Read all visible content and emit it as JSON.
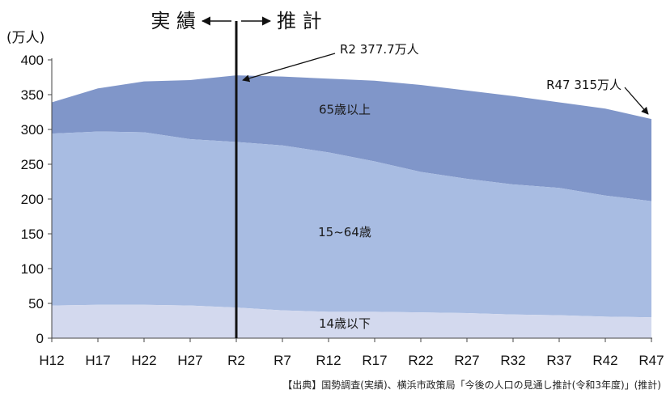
{
  "chart_data": {
    "type": "area",
    "stacked": true,
    "ylabel": "(万人)",
    "ylim": [
      0,
      400
    ],
    "yticks": [
      0,
      50,
      100,
      150,
      200,
      250,
      300,
      350,
      400
    ],
    "grid": false,
    "legend": "none",
    "categories": [
      "H12",
      "H17",
      "H22",
      "H27",
      "R2",
      "R7",
      "R12",
      "R17",
      "R22",
      "R27",
      "R32",
      "R37",
      "R42",
      "R47"
    ],
    "series": [
      {
        "name": "14歳以下",
        "color": "#d3d9ee",
        "values": [
          47,
          48,
          48,
          47,
          44,
          40,
          38,
          38,
          37,
          36,
          34,
          33,
          31,
          30
        ]
      },
      {
        "name": "15~64歳",
        "color": "#a8bce2",
        "values": [
          247,
          249,
          248,
          239,
          238,
          237,
          229,
          216,
          202,
          193,
          187,
          183,
          174,
          167
        ]
      },
      {
        "name": "65歳以上",
        "color": "#8096c9",
        "values": [
          45,
          62,
          73,
          85,
          95.7,
          99,
          106,
          116,
          125,
          127,
          127,
          123,
          125,
          118
        ]
      }
    ],
    "divider_after": "R2",
    "phase_labels": {
      "left": "実 績",
      "right": "推 計"
    },
    "annotations": [
      {
        "text": "R2 377.7万人",
        "category": "R2",
        "value": 377.7
      },
      {
        "text": "R47 315万人",
        "category": "R47",
        "value": 315
      }
    ],
    "source": "【出典】国勢調査(実績)、横浜市政策局「今後の人口の見通し推計(令和3年度)」(推計)"
  }
}
